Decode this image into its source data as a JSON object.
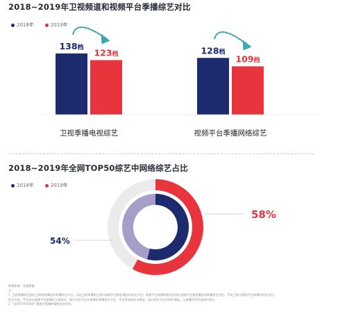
{
  "colors": {
    "y2018": "#1d2b6e",
    "y2019": "#e8343d",
    "faded_2018": "#a39fc8",
    "ring_bg": "#ebebeb",
    "arrow": "#3ea5b5"
  },
  "title1": "2018~2019年卫视频道和视频平台季播综艺对比",
  "title2": "2018~2019年全网TOP50综艺中网络综艺占比",
  "legend": {
    "y2018": "2018年",
    "y2019": "2019年"
  },
  "chart_data": [
    {
      "type": "bar",
      "title": "2018~2019年卫视频道和视频平台季播综艺对比",
      "categories": [
        "卫视季播电视综艺",
        "视频平台季播网络综艺"
      ],
      "unit": "档",
      "ylim": [
        0,
        150
      ],
      "series": [
        {
          "name": "2018年",
          "values": [
            138,
            128
          ]
        },
        {
          "name": "2019年",
          "values": [
            123,
            109
          ]
        }
      ],
      "value_labels": [
        [
          "138档",
          "123档"
        ],
        [
          "128档",
          "109档"
        ]
      ]
    },
    {
      "type": "pie",
      "title": "2018~2019年全网TOP50综艺中网络综艺占比",
      "variant": "nested-donut",
      "series": [
        {
          "name": "2018年",
          "value": 54,
          "label": "54%"
        },
        {
          "name": "2019年",
          "value": 58,
          "label": "58%"
        }
      ]
    }
  ],
  "footnote": [
    "数据来源：无限数据",
    "注：",
    "1. 卫视季播综艺指在卫视频道播出的季播综艺节目，包括卫视单播和卫视与视频平台联合播出的综艺节目；视频平台季播网络综艺指在视频平台独家播出的季播综艺节目，不含卫视与视频平台联播的综艺节目。",
    "综艺节目，不含仅在视频平台首播的卫视综艺；统计口径为当年首播的季播综艺节目，不含常态综艺与晚会；部分综艺节目为跨年播出，以首播时间为准进行统计。",
    "2. “全网TOP50综艺”根据艺恩播映指数综合排名。"
  ]
}
